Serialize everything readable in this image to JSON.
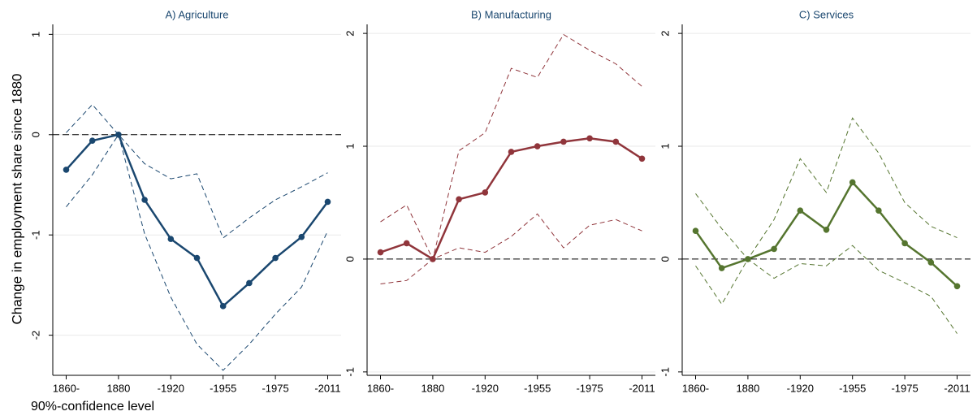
{
  "ylabel": "Change in employment share since 1880",
  "note": "90%-confidence level",
  "chart_data": [
    {
      "type": "line",
      "title": "A) Agriculture",
      "categories": [
        "1860-",
        null,
        "1880",
        null,
        "-1920",
        null,
        "-1955",
        null,
        "-1975",
        null,
        "-2011"
      ],
      "ylim": [
        -2.4,
        1.1
      ],
      "yticks": [
        -2,
        -1,
        0,
        1
      ],
      "grid": true,
      "hline": 0,
      "series": [
        {
          "color": "#1a476f",
          "style": "solid",
          "markers": true,
          "values": [
            -0.35,
            -0.06,
            0,
            -0.65,
            -1.04,
            -1.23,
            -1.71,
            -1.48,
            -1.23,
            -1.02,
            -0.67
          ]
        },
        {
          "color": "#1a476f",
          "style": "dashed",
          "markers": false,
          "values": [
            0.02,
            0.3,
            0,
            -0.29,
            -0.44,
            -0.39,
            -1.03,
            -0.83,
            -0.65,
            -0.52,
            -0.38
          ]
        },
        {
          "color": "#1a476f",
          "style": "dashed",
          "markers": false,
          "values": [
            -0.72,
            -0.4,
            0,
            -0.99,
            -1.62,
            -2.09,
            -2.35,
            -2.09,
            -1.79,
            -1.52,
            -0.96
          ]
        }
      ]
    },
    {
      "type": "line",
      "title": "B) Manufacturing",
      "categories": [
        "1860-",
        null,
        "1880",
        null,
        "-1920",
        null,
        "-1955",
        null,
        "-1975",
        null,
        "-2011"
      ],
      "ylim": [
        -1.03,
        2.08
      ],
      "yticks": [
        -1,
        0,
        1,
        2
      ],
      "grid": true,
      "hline": 0,
      "series": [
        {
          "color": "#90353b",
          "style": "solid",
          "markers": true,
          "values": [
            0.06,
            0.14,
            0,
            0.53,
            0.59,
            0.95,
            1.0,
            1.04,
            1.07,
            1.04,
            0.89
          ]
        },
        {
          "color": "#90353b",
          "style": "dashed",
          "markers": false,
          "values": [
            0.33,
            0.48,
            0,
            0.96,
            1.12,
            1.69,
            1.61,
            1.99,
            1.85,
            1.73,
            1.53
          ]
        },
        {
          "color": "#90353b",
          "style": "dashed",
          "markers": false,
          "values": [
            -0.22,
            -0.19,
            0,
            0.1,
            0.06,
            0.2,
            0.4,
            0.1,
            0.3,
            0.35,
            0.25
          ]
        }
      ]
    },
    {
      "type": "line",
      "title": "C) Services",
      "categories": [
        "1860-",
        null,
        "1880",
        null,
        "-1920",
        null,
        "-1955",
        null,
        "-1975",
        null,
        "-2011"
      ],
      "ylim": [
        -1.03,
        2.08
      ],
      "yticks": [
        -1,
        0,
        1,
        2
      ],
      "grid": true,
      "hline": 0,
      "series": [
        {
          "color": "#55752f",
          "style": "solid",
          "markers": true,
          "values": [
            0.25,
            -0.08,
            0,
            0.09,
            0.43,
            0.26,
            0.68,
            0.43,
            0.14,
            -0.03,
            -0.24
          ]
        },
        {
          "color": "#55752f",
          "style": "dashed",
          "markers": false,
          "values": [
            0.58,
            0.27,
            0,
            0.35,
            0.89,
            0.59,
            1.25,
            0.94,
            0.5,
            0.29,
            0.19
          ]
        },
        {
          "color": "#55752f",
          "style": "dashed",
          "markers": false,
          "values": [
            -0.06,
            -0.4,
            0,
            -0.17,
            -0.04,
            -0.06,
            0.12,
            -0.1,
            -0.21,
            -0.33,
            -0.66
          ]
        }
      ]
    }
  ]
}
